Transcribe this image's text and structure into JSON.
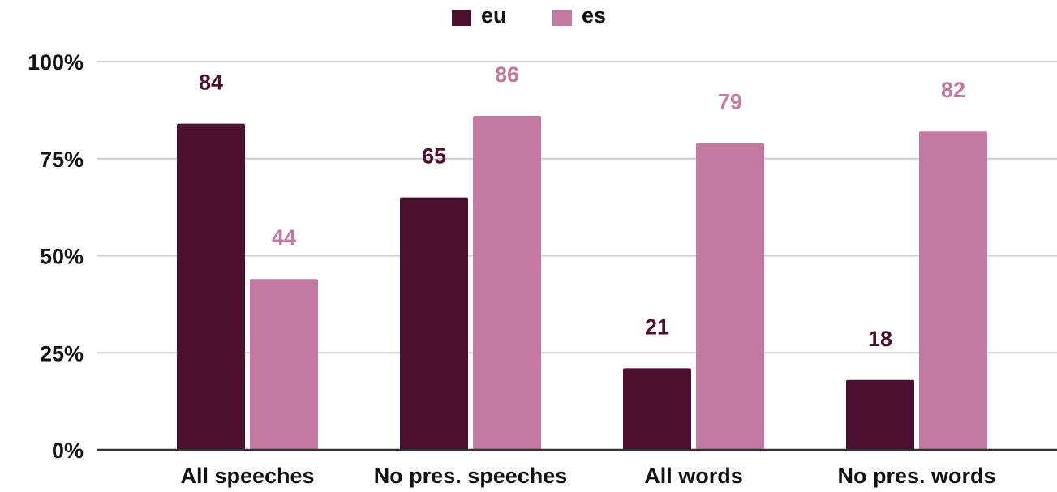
{
  "chart_data": {
    "type": "bar",
    "categories": [
      "All speeches",
      "No pres. speeches",
      "All words",
      "No pres. words"
    ],
    "series": [
      {
        "name": "eu",
        "values": [
          84,
          65,
          21,
          18
        ],
        "color": "#4b1030",
        "labels": [
          "84",
          "65",
          "21",
          "18"
        ]
      },
      {
        "name": "es",
        "values": [
          44,
          86,
          79,
          82
        ],
        "color": "#c27aa0",
        "labels": [
          "44",
          "86",
          "79",
          "82"
        ]
      }
    ],
    "ylim": [
      0,
      100
    ],
    "yticks": [
      0,
      25,
      50,
      75,
      100
    ],
    "ytick_labels": [
      "0%",
      "25%",
      "50%",
      "75%",
      "100%"
    ],
    "grid": true,
    "legend_position": "top-center",
    "title": "",
    "xlabel": "",
    "ylabel": "",
    "gridline_color": "#cfcfcf",
    "axis_color": "#333333"
  }
}
